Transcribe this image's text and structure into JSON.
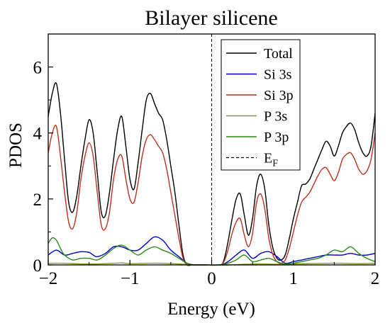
{
  "chart_data": {
    "type": "line",
    "title": "Bilayer silicene",
    "xlabel": "Energy (eV)",
    "ylabel": "PDOS",
    "xlim": [
      -2,
      2
    ],
    "ylim": [
      0,
      7.0
    ],
    "x_ticks": [
      -2,
      -1,
      0,
      1,
      2
    ],
    "x_tick_labels": [
      "−2",
      "−1",
      "0",
      "1",
      "2"
    ],
    "y_ticks": [
      0,
      2,
      4,
      6
    ],
    "y_tick_labels": [
      "0",
      "2",
      "4",
      "6"
    ],
    "grid": false,
    "legend_position": "top-right",
    "fermi_level": {
      "x": 0,
      "label": "E",
      "label_sub": "F",
      "style": "dashed",
      "color": "#000000"
    },
    "series": [
      {
        "name": "Total",
        "color": "#000000",
        "x": [
          -2.0,
          -1.95,
          -1.9,
          -1.85,
          -1.8,
          -1.75,
          -1.7,
          -1.65,
          -1.6,
          -1.55,
          -1.5,
          -1.45,
          -1.4,
          -1.35,
          -1.3,
          -1.25,
          -1.2,
          -1.15,
          -1.1,
          -1.05,
          -1.0,
          -0.95,
          -0.9,
          -0.85,
          -0.8,
          -0.75,
          -0.7,
          -0.65,
          -0.6,
          -0.55,
          -0.5,
          -0.45,
          -0.4,
          -0.35,
          -0.3,
          -0.25,
          -0.2,
          -0.15,
          -0.1,
          0.1,
          0.15,
          0.2,
          0.25,
          0.3,
          0.35,
          0.4,
          0.45,
          0.5,
          0.55,
          0.6,
          0.65,
          0.7,
          0.75,
          0.8,
          0.85,
          0.9,
          0.95,
          1.0,
          1.05,
          1.1,
          1.15,
          1.2,
          1.25,
          1.3,
          1.35,
          1.4,
          1.45,
          1.5,
          1.55,
          1.6,
          1.65,
          1.7,
          1.75,
          1.8,
          1.85,
          1.9,
          1.95,
          2.0
        ],
        "values": [
          4.5,
          5.2,
          5.5,
          4.6,
          3.2,
          1.9,
          1.6,
          2.1,
          3.0,
          3.8,
          4.4,
          4.0,
          2.8,
          1.6,
          1.5,
          2.2,
          3.2,
          4.1,
          4.5,
          3.6,
          2.6,
          2.3,
          3.1,
          4.1,
          5.0,
          5.2,
          4.9,
          4.6,
          4.4,
          3.8,
          3.0,
          2.2,
          1.2,
          0.3,
          0.0,
          0.0,
          0.0,
          0.0,
          0.0,
          0.0,
          0.15,
          0.7,
          1.4,
          2.0,
          2.15,
          1.5,
          0.9,
          1.4,
          2.4,
          2.75,
          2.3,
          1.2,
          0.5,
          0.2,
          0.15,
          0.3,
          0.8,
          1.4,
          1.9,
          2.4,
          2.45,
          2.6,
          2.9,
          3.2,
          3.5,
          3.75,
          3.6,
          3.3,
          3.6,
          4.0,
          4.2,
          4.3,
          4.1,
          3.7,
          3.4,
          3.3,
          3.6,
          4.6
        ]
      },
      {
        "name": "Si 3s",
        "color": "#0000cc",
        "x": [
          -2.0,
          -1.9,
          -1.8,
          -1.7,
          -1.6,
          -1.5,
          -1.45,
          -1.4,
          -1.3,
          -1.2,
          -1.1,
          -1.0,
          -0.9,
          -0.8,
          -0.7,
          -0.6,
          -0.5,
          -0.4,
          -0.3,
          -0.2,
          -0.1,
          0.1,
          0.2,
          0.3,
          0.4,
          0.5,
          0.6,
          0.7,
          0.8,
          0.9,
          1.0,
          1.1,
          1.2,
          1.3,
          1.4,
          1.5,
          1.6,
          1.7,
          1.8,
          1.9,
          2.0
        ],
        "values": [
          0.3,
          0.45,
          0.3,
          0.35,
          0.4,
          0.38,
          0.3,
          0.25,
          0.35,
          0.55,
          0.55,
          0.45,
          0.45,
          0.65,
          0.85,
          0.75,
          0.45,
          0.25,
          0.05,
          0.0,
          0.0,
          0.0,
          0.1,
          0.3,
          0.45,
          0.2,
          0.35,
          0.4,
          0.25,
          0.05,
          0.1,
          0.15,
          0.2,
          0.25,
          0.3,
          0.3,
          0.3,
          0.35,
          0.3,
          0.3,
          0.35
        ]
      },
      {
        "name": "Si 3p",
        "color": "#c0301e",
        "x": [
          -2.0,
          -1.95,
          -1.9,
          -1.85,
          -1.8,
          -1.75,
          -1.7,
          -1.65,
          -1.6,
          -1.55,
          -1.5,
          -1.45,
          -1.4,
          -1.35,
          -1.3,
          -1.25,
          -1.2,
          -1.15,
          -1.1,
          -1.05,
          -1.0,
          -0.95,
          -0.9,
          -0.85,
          -0.8,
          -0.75,
          -0.7,
          -0.65,
          -0.6,
          -0.55,
          -0.5,
          -0.45,
          -0.4,
          -0.35,
          -0.3,
          -0.25,
          -0.2,
          -0.15,
          -0.1,
          0.1,
          0.15,
          0.2,
          0.25,
          0.3,
          0.35,
          0.4,
          0.45,
          0.5,
          0.55,
          0.6,
          0.65,
          0.7,
          0.75,
          0.8,
          0.85,
          0.9,
          0.95,
          1.0,
          1.05,
          1.1,
          1.15,
          1.2,
          1.25,
          1.3,
          1.35,
          1.4,
          1.45,
          1.5,
          1.55,
          1.6,
          1.65,
          1.7,
          1.75,
          1.8,
          1.85,
          1.9,
          1.95,
          2.0
        ],
        "values": [
          3.4,
          4.0,
          4.2,
          3.3,
          2.2,
          1.3,
          1.1,
          1.6,
          2.6,
          3.3,
          3.7,
          3.3,
          2.2,
          1.2,
          1.1,
          1.6,
          2.6,
          3.2,
          3.3,
          2.6,
          2.0,
          1.9,
          2.5,
          3.3,
          3.8,
          3.95,
          3.8,
          3.6,
          3.4,
          2.9,
          2.2,
          1.5,
          0.8,
          0.2,
          0.0,
          0.0,
          0.0,
          0.0,
          0.0,
          0.0,
          0.1,
          0.45,
          0.95,
          1.3,
          1.4,
          0.9,
          0.55,
          0.95,
          1.9,
          2.15,
          1.7,
          0.8,
          0.3,
          0.1,
          0.05,
          0.15,
          0.5,
          1.0,
          1.5,
          1.9,
          2.05,
          2.2,
          2.45,
          2.7,
          2.9,
          2.95,
          2.75,
          2.55,
          2.8,
          3.2,
          3.35,
          3.4,
          3.2,
          2.9,
          2.75,
          2.85,
          3.2,
          4.0
        ]
      },
      {
        "name": "P 3s",
        "color": "#8c9a12",
        "x": [
          -2.0,
          -1.8,
          -1.6,
          -1.4,
          -1.2,
          -1.1,
          -1.0,
          -0.8,
          -0.6,
          -0.4,
          -0.2,
          0.2,
          0.4,
          0.6,
          0.8,
          1.0,
          1.2,
          1.4,
          1.6,
          1.8,
          2.0
        ],
        "values": [
          0.05,
          0.05,
          0.03,
          0.03,
          0.05,
          0.06,
          0.04,
          0.05,
          0.05,
          0.03,
          0.0,
          0.0,
          0.02,
          0.03,
          0.02,
          0.03,
          0.04,
          0.05,
          0.05,
          0.04,
          0.05
        ]
      },
      {
        "name": "P 3p",
        "color": "#2a8a1a",
        "x": [
          -2.0,
          -1.95,
          -1.9,
          -1.85,
          -1.8,
          -1.7,
          -1.6,
          -1.5,
          -1.4,
          -1.3,
          -1.2,
          -1.1,
          -1.0,
          -0.9,
          -0.8,
          -0.7,
          -0.6,
          -0.5,
          -0.4,
          -0.3,
          -0.2,
          -0.1,
          0.1,
          0.2,
          0.3,
          0.4,
          0.5,
          0.6,
          0.7,
          0.8,
          0.9,
          1.0,
          1.1,
          1.2,
          1.3,
          1.4,
          1.5,
          1.6,
          1.7,
          1.8,
          1.9,
          2.0
        ],
        "values": [
          0.65,
          0.82,
          0.75,
          0.5,
          0.3,
          0.15,
          0.2,
          0.2,
          0.15,
          0.3,
          0.5,
          0.6,
          0.45,
          0.3,
          0.45,
          0.55,
          0.45,
          0.35,
          0.2,
          0.05,
          0.0,
          0.0,
          0.0,
          0.05,
          0.15,
          0.3,
          0.1,
          0.15,
          0.2,
          0.1,
          0.02,
          0.05,
          0.1,
          0.15,
          0.2,
          0.3,
          0.45,
          0.4,
          0.55,
          0.35,
          0.2,
          0.1
        ]
      }
    ]
  }
}
